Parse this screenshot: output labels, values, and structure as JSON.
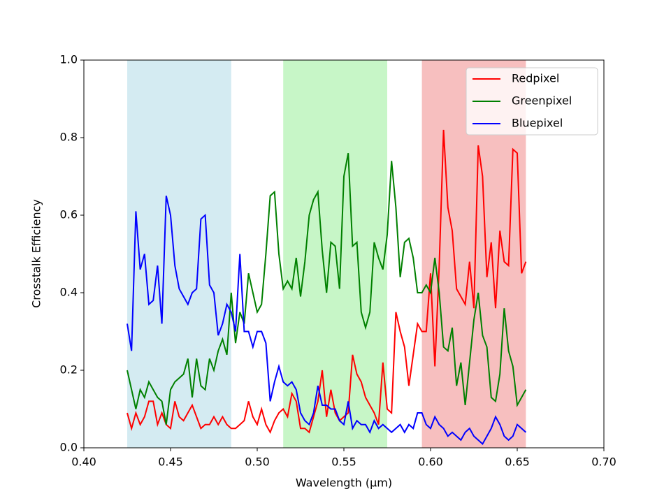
{
  "chart_data": {
    "type": "line",
    "xlabel": "Wavelength (μm)",
    "ylabel": "Crosstalk Efficiency",
    "xlim": [
      0.4,
      0.7
    ],
    "ylim": [
      0,
      1
    ],
    "xticks": [
      {
        "value": 0.4,
        "label": "0.40"
      },
      {
        "value": 0.45,
        "label": "0.45"
      },
      {
        "value": 0.5,
        "label": "0.50"
      },
      {
        "value": 0.55,
        "label": "0.55"
      },
      {
        "value": 0.6,
        "label": "0.60"
      },
      {
        "value": 0.65,
        "label": "0.65"
      },
      {
        "value": 0.7,
        "label": "0.70"
      }
    ],
    "yticks": [
      {
        "value": 0,
        "label": "0.0"
      },
      {
        "value": 0.2,
        "label": "0.2"
      },
      {
        "value": 0.4,
        "label": "0.4"
      },
      {
        "value": 0.6,
        "label": "0.6"
      },
      {
        "value": 0.8,
        "label": "0.8"
      },
      {
        "value": 1,
        "label": "1.0"
      }
    ],
    "legend": "upper right",
    "spans": [
      {
        "xmin": 0.425,
        "xmax": 0.485,
        "color": "#d4ebf2"
      },
      {
        "xmin": 0.515,
        "xmax": 0.575,
        "color": "#c7f6c7"
      },
      {
        "xmin": 0.595,
        "xmax": 0.655,
        "color": "#f7bfbf"
      }
    ],
    "x": [
      0.425,
      0.4275,
      0.43,
      0.4325,
      0.435,
      0.4375,
      0.44,
      0.4425,
      0.445,
      0.4475,
      0.45,
      0.4525,
      0.455,
      0.4575,
      0.46,
      0.4625,
      0.465,
      0.4675,
      0.47,
      0.4725,
      0.475,
      0.4775,
      0.48,
      0.4825,
      0.485,
      0.4875,
      0.49,
      0.4925,
      0.495,
      0.4975,
      0.5,
      0.5025,
      0.505,
      0.5075,
      0.51,
      0.5125,
      0.515,
      0.5175,
      0.52,
      0.5225,
      0.525,
      0.5275,
      0.53,
      0.5325,
      0.535,
      0.5375,
      0.54,
      0.5425,
      0.545,
      0.5475,
      0.55,
      0.5525,
      0.555,
      0.5575,
      0.56,
      0.5625,
      0.565,
      0.5675,
      0.57,
      0.5725,
      0.575,
      0.5775,
      0.58,
      0.5825,
      0.585,
      0.5875,
      0.59,
      0.5925,
      0.595,
      0.5975,
      0.6,
      0.6025,
      0.605,
      0.6075,
      0.61,
      0.6125,
      0.615,
      0.6175,
      0.62,
      0.6225,
      0.625,
      0.6275,
      0.63,
      0.6325,
      0.635,
      0.6375,
      0.64,
      0.6425,
      0.645,
      0.6475,
      0.65,
      0.6525,
      0.655
    ],
    "series": [
      {
        "name": "Redpixel",
        "color": "#ff0000",
        "values": [
          0.09,
          0.05,
          0.09,
          0.06,
          0.08,
          0.12,
          0.12,
          0.06,
          0.09,
          0.06,
          0.05,
          0.12,
          0.08,
          0.07,
          0.09,
          0.11,
          0.08,
          0.05,
          0.06,
          0.06,
          0.08,
          0.06,
          0.08,
          0.06,
          0.05,
          0.05,
          0.06,
          0.07,
          0.12,
          0.08,
          0.06,
          0.1,
          0.06,
          0.04,
          0.07,
          0.09,
          0.1,
          0.08,
          0.14,
          0.12,
          0.05,
          0.05,
          0.04,
          0.08,
          0.12,
          0.2,
          0.08,
          0.15,
          0.09,
          0.07,
          0.08,
          0.09,
          0.24,
          0.19,
          0.17,
          0.13,
          0.11,
          0.09,
          0.06,
          0.22,
          0.1,
          0.09,
          0.35,
          0.3,
          0.26,
          0.16,
          0.24,
          0.32,
          0.3,
          0.3,
          0.45,
          0.21,
          0.47,
          0.82,
          0.62,
          0.56,
          0.41,
          0.39,
          0.37,
          0.48,
          0.36,
          0.78,
          0.7,
          0.44,
          0.53,
          0.36,
          0.56,
          0.48,
          0.47,
          0.77,
          0.76,
          0.45,
          0.48
        ]
      },
      {
        "name": "Greenpixel",
        "color": "#008000",
        "values": [
          0.2,
          0.15,
          0.1,
          0.15,
          0.13,
          0.17,
          0.15,
          0.13,
          0.12,
          0.06,
          0.15,
          0.17,
          0.18,
          0.19,
          0.23,
          0.13,
          0.23,
          0.16,
          0.15,
          0.23,
          0.2,
          0.25,
          0.28,
          0.24,
          0.4,
          0.27,
          0.35,
          0.32,
          0.45,
          0.4,
          0.35,
          0.37,
          0.5,
          0.65,
          0.66,
          0.5,
          0.41,
          0.43,
          0.41,
          0.49,
          0.39,
          0.48,
          0.6,
          0.64,
          0.66,
          0.51,
          0.4,
          0.53,
          0.52,
          0.41,
          0.7,
          0.76,
          0.52,
          0.53,
          0.35,
          0.31,
          0.35,
          0.53,
          0.49,
          0.46,
          0.55,
          0.74,
          0.62,
          0.44,
          0.53,
          0.54,
          0.49,
          0.4,
          0.4,
          0.42,
          0.4,
          0.49,
          0.4,
          0.26,
          0.25,
          0.31,
          0.16,
          0.22,
          0.11,
          0.22,
          0.33,
          0.4,
          0.29,
          0.26,
          0.13,
          0.12,
          0.19,
          0.36,
          0.25,
          0.21,
          0.11,
          0.13,
          0.15
        ]
      },
      {
        "name": "Bluepixel",
        "color": "#0000ff",
        "values": [
          0.32,
          0.25,
          0.61,
          0.46,
          0.5,
          0.37,
          0.38,
          0.47,
          0.32,
          0.65,
          0.6,
          0.47,
          0.41,
          0.39,
          0.37,
          0.4,
          0.41,
          0.59,
          0.6,
          0.42,
          0.4,
          0.29,
          0.32,
          0.37,
          0.35,
          0.3,
          0.5,
          0.3,
          0.3,
          0.26,
          0.3,
          0.3,
          0.27,
          0.12,
          0.17,
          0.21,
          0.17,
          0.16,
          0.17,
          0.15,
          0.09,
          0.07,
          0.06,
          0.09,
          0.16,
          0.11,
          0.11,
          0.1,
          0.1,
          0.07,
          0.06,
          0.12,
          0.05,
          0.07,
          0.06,
          0.06,
          0.04,
          0.07,
          0.05,
          0.06,
          0.05,
          0.04,
          0.05,
          0.06,
          0.04,
          0.06,
          0.05,
          0.09,
          0.09,
          0.06,
          0.05,
          0.08,
          0.06,
          0.05,
          0.03,
          0.04,
          0.03,
          0.02,
          0.04,
          0.05,
          0.03,
          0.02,
          0.01,
          0.03,
          0.05,
          0.08,
          0.06,
          0.03,
          0.02,
          0.03,
          0.06,
          0.05,
          0.04
        ]
      }
    ]
  }
}
